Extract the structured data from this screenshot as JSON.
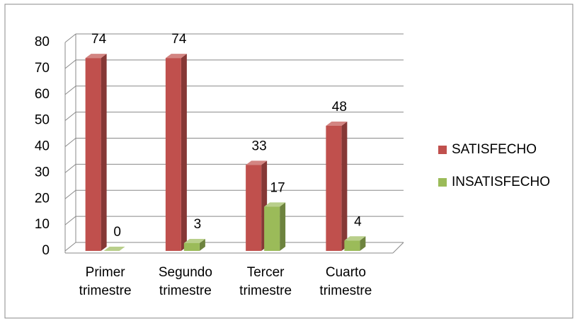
{
  "chart_data": {
    "type": "bar3d",
    "categories": [
      "Primer trimestre",
      "Segundo trimestre",
      "Tercer trimestre",
      "Cuarto trimestre"
    ],
    "series": [
      {
        "name": "SATISFECHO",
        "color": "#c0504d",
        "values": [
          74,
          74,
          33,
          48
        ]
      },
      {
        "name": "INSATISFECHO",
        "color": "#9bbb59",
        "values": [
          0,
          3,
          17,
          4
        ]
      }
    ],
    "ylim": [
      0,
      80
    ],
    "yticks": [
      0,
      10,
      20,
      30,
      40,
      50,
      60,
      70,
      80
    ],
    "grid": true,
    "legend": "right"
  }
}
